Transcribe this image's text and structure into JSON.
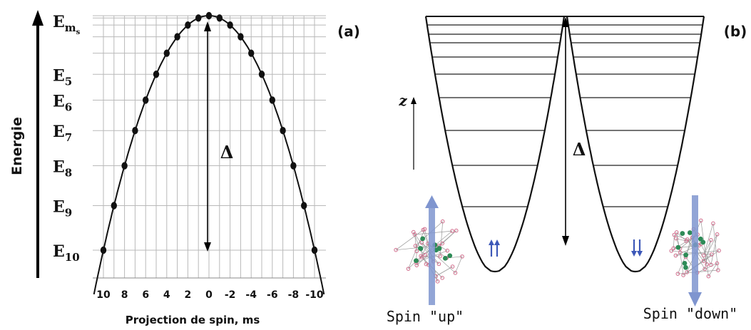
{
  "panel_a": {
    "tag": "(a)",
    "y_axis_label": "Energie",
    "x_axis_label": "Projection de spin, ms",
    "delta_label": "Δ",
    "level_labels": [
      {
        "main": "E",
        "sub": "m",
        "subsub": "s"
      },
      {
        "main": "E",
        "sub": "5"
      },
      {
        "main": "E",
        "sub": "6"
      },
      {
        "main": "E",
        "sub": "7"
      },
      {
        "main": "E",
        "sub": "8"
      },
      {
        "main": "E",
        "sub": "9"
      },
      {
        "main": "E",
        "sub": "10"
      }
    ],
    "x_ticks": [
      "10",
      "8",
      "6",
      "4",
      "2",
      "0",
      "-2",
      "-4",
      "-6",
      "-8",
      "-10"
    ],
    "ms_values": [
      10,
      9,
      8,
      7,
      6,
      5,
      4,
      3,
      2,
      1,
      0,
      -1,
      -2,
      -3,
      -4,
      -5,
      -6,
      -7,
      -8,
      -9,
      -10
    ]
  },
  "panel_b": {
    "tag": "(b)",
    "z_label": "z",
    "delta_label": "Δ",
    "spin_up_label": "Spin \"up\"",
    "spin_down_label": "Spin \"down\"",
    "arrow_color": "#7f95cf",
    "small_arrow_color": "#3d58b8"
  },
  "colors": {
    "grid": "#b9b9b9",
    "curve": "#111111",
    "molecule_atom": "#d06a8a",
    "molecule_metal": "#2e8b57"
  }
}
